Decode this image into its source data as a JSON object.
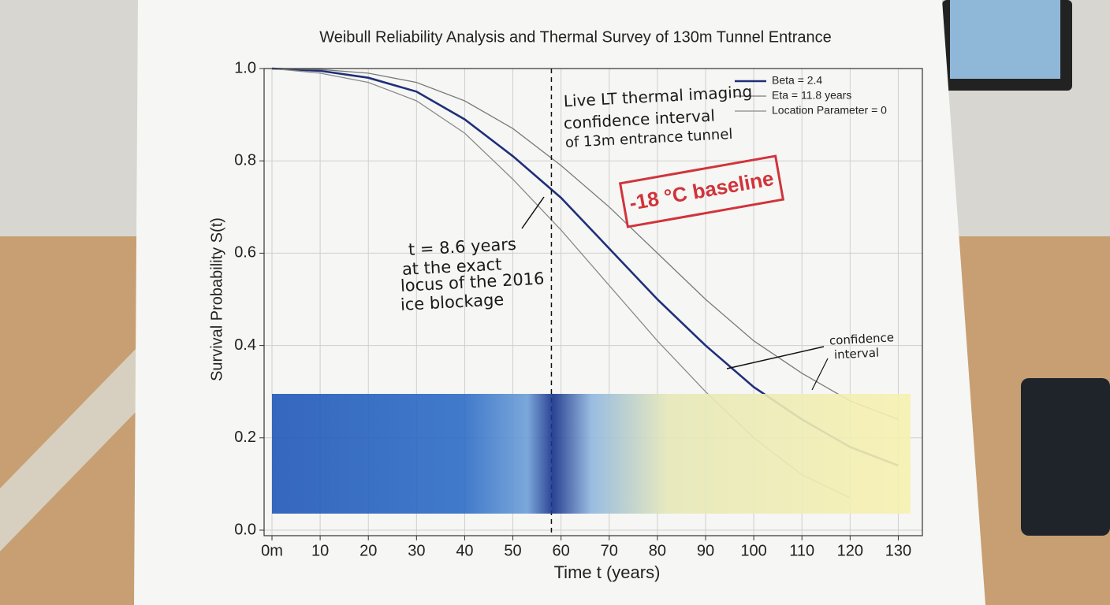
{
  "chart_data": {
    "type": "line",
    "title": "Weibull Reliability Analysis and Thermal Survey of 130m Tunnel Entrance",
    "x_label": "Time t (years)",
    "y_label": "Survival Probability S(t)",
    "x": [
      0,
      10,
      20,
      30,
      40,
      50,
      60,
      70,
      80,
      90,
      100,
      110,
      120,
      130
    ],
    "series": [
      {
        "name": "Beta = 2.4",
        "color": "#1f2f7a",
        "values": [
          1.0,
          0.995,
          0.98,
          0.95,
          0.89,
          0.81,
          0.72,
          0.61,
          0.5,
          0.4,
          0.31,
          0.24,
          0.18,
          0.14
        ]
      },
      {
        "name": "Eta = 11.8 years",
        "color": "#7a7a7a",
        "values": [
          1.0,
          0.998,
          0.99,
          0.97,
          0.93,
          0.87,
          0.79,
          0.7,
          0.6,
          0.5,
          0.41,
          0.34,
          0.28,
          0.24
        ]
      },
      {
        "name": "Location Parameter = 0",
        "color": "#8a8a8a",
        "values": [
          1.0,
          0.99,
          0.97,
          0.93,
          0.86,
          0.76,
          0.65,
          0.53,
          0.41,
          0.3,
          0.2,
          0.12,
          0.07,
          null
        ]
      }
    ],
    "xlim": [
      0,
      135
    ],
    "ylim": [
      0,
      1
    ],
    "xticks": [
      {
        "value": 0,
        "label": "0m"
      },
      10,
      20,
      30,
      40,
      50,
      60,
      70,
      80,
      90,
      100,
      110,
      120,
      130
    ],
    "yticks": [
      {
        "value": 0,
        "label": "0.0"
      },
      0.2,
      0.4,
      0.6,
      0.8,
      {
        "value": 1,
        "label": "1.0"
      }
    ],
    "grid": true,
    "legend": "upper right",
    "marker_x": 58,
    "annotations": [
      "Live LT thermal imaging",
      "confidence interval",
      "of 13m entrance tunnel",
      "t = 8.6 years",
      "at the exact",
      "locus of the 2016",
      "ice blockage",
      "confidence",
      "interval"
    ],
    "stamp": "-18 °C baseline"
  }
}
